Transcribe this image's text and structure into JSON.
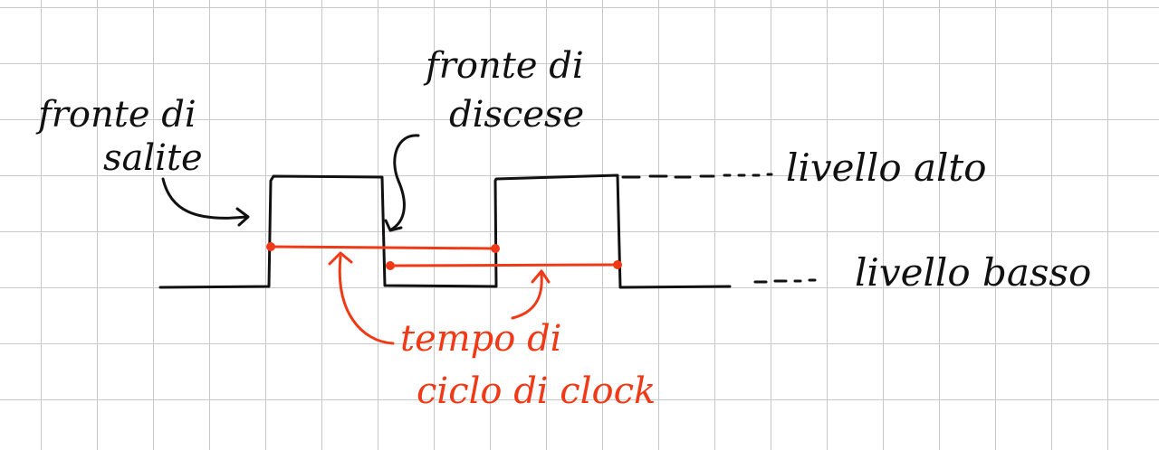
{
  "labels": {
    "rising_edge_line1": "fronte di",
    "rising_edge_line2": "salite",
    "falling_edge_line1": "fronte di",
    "falling_edge_line2": "discese",
    "high_level": "livello alto",
    "low_level": "livello basso",
    "clock_period_line1": "tempo di",
    "clock_period_line2": "ciclo di clock"
  },
  "colors": {
    "ink": "#111111",
    "accent": "#f03a17",
    "grid": "#c9c9c9",
    "paper": "#ffffff"
  }
}
